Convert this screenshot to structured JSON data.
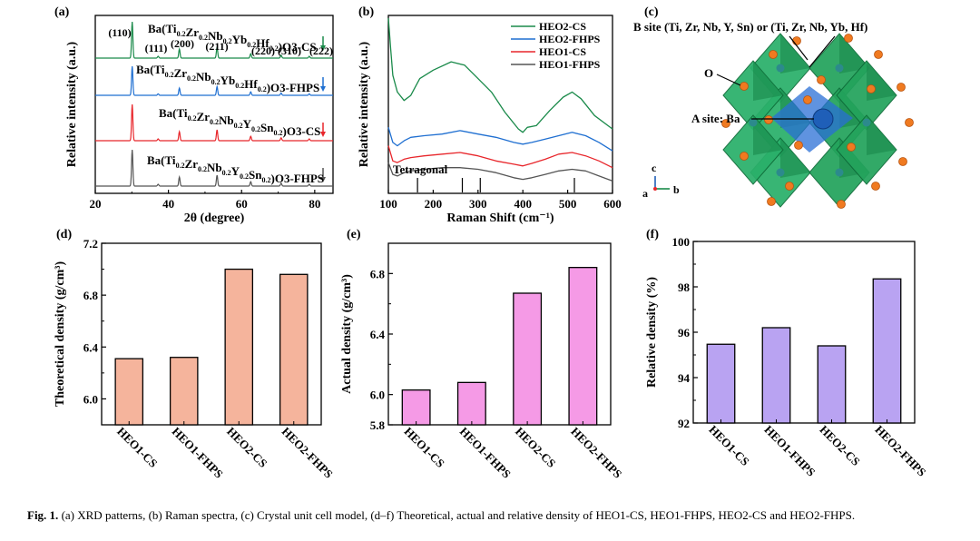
{
  "figure": {
    "caption_label": "Fig. 1.",
    "caption_text": "(a) XRD patterns, (b) Raman spectra, (c) Crystal unit cell model, (d–f) Theoretical, actual and relative density of HEO1-CS, HEO1-FHPS, HEO2-CS and HEO2-FHPS."
  },
  "panel_a": {
    "label": "(a)",
    "xlabel": "2θ (degree)",
    "ylabel": "Relative intensity (a.u.)",
    "xticks": [
      "20",
      "40",
      "60",
      "80"
    ],
    "peaks": [
      "(110)",
      "(111)",
      "(200)",
      "(211)",
      "(220)",
      "(310)",
      "(222)"
    ],
    "series_names": [
      "Ba(Ti0.2Zr0.2Nb0.2Yb0.2Hf0.2)O3-CS",
      "Ba(Ti0.2Zr0.2Nb0.2Yb0.2Hf0.2)O3-FHPS",
      "Ba(Ti0.2Zr0.2Nb0.2Y0.2Sn0.2)O3-CS",
      "Ba(Ti0.2Zr0.2Nb0.2Y0.2Sn0.2)O3-FHPS"
    ]
  },
  "panel_b": {
    "label": "(b)",
    "xlabel": "Raman Shift (cm⁻¹)",
    "ylabel": "Relative intensity (a.u.)",
    "xticks": [
      "100",
      "200",
      "300",
      "400",
      "500",
      "600"
    ],
    "legend": [
      "HEO2-CS",
      "HEO2-FHPS",
      "HEO1-CS",
      "HEO1-FHPS"
    ],
    "annotation": "Tetragonal"
  },
  "panel_c": {
    "label": "(c)",
    "b_site": "B site (Ti, Zr, Nb, Y, Sn) or (Ti, Zr, Nb, Yb, Hf)",
    "o_label": "O",
    "a_site": "A site: Ba",
    "axes": [
      "c",
      "a",
      "b"
    ]
  },
  "colors": {
    "green": "#1a8a4a",
    "blue": "#1f6fd1",
    "red": "#e8262b",
    "gray": "#555555",
    "bar_d": "#f5b49c",
    "bar_e": "#f59ae6",
    "bar_f": "#b9a3f2"
  },
  "chart_data": [
    {
      "type": "line",
      "title": "XRD patterns",
      "xlabel": "2θ (degree)",
      "ylabel": "Relative intensity (a.u.)",
      "xlim": [
        20,
        85
      ],
      "peak_positions": [
        30.1,
        37.2,
        43.0,
        53.3,
        62.5,
        70.8,
        78.5
      ],
      "peak_labels": [
        "(110)",
        "(111)",
        "(200)",
        "(211)",
        "(220)",
        "(310)",
        "(222)"
      ],
      "peak_intensity": [
        1.0,
        0.05,
        0.25,
        0.3,
        0.12,
        0.08,
        0.05
      ],
      "series": [
        {
          "name": "Ba(Ti0.2Zr0.2Nb0.2Yb0.2Hf0.2)O3-CS",
          "color": "#1a8a4a"
        },
        {
          "name": "Ba(Ti0.2Zr0.2Nb0.2Yb0.2Hf0.2)O3-FHPS",
          "color": "#1f6fd1"
        },
        {
          "name": "Ba(Ti0.2Zr0.2Nb0.2Y0.2Sn0.2)O3-CS",
          "color": "#e8262b"
        },
        {
          "name": "Ba(Ti0.2Zr0.2Nb0.2Y0.2Sn0.2)O3-FHPS",
          "color": "#555555"
        }
      ]
    },
    {
      "type": "line",
      "title": "Raman spectra",
      "xlabel": "Raman Shift (cm⁻¹)",
      "ylabel": "Relative intensity (a.u.)",
      "xlim": [
        100,
        600
      ],
      "tetragonal_markers": [
        165,
        265,
        305,
        515
      ],
      "series": [
        {
          "name": "HEO2-CS",
          "color": "#1a8a4a",
          "x": [
            100,
            105,
            110,
            120,
            135,
            150,
            170,
            200,
            240,
            270,
            300,
            330,
            360,
            390,
            400,
            410,
            430,
            460,
            490,
            510,
            530,
            560,
            600
          ],
          "y": [
            10.0,
            8.2,
            6.6,
            5.6,
            5.1,
            5.4,
            6.4,
            6.9,
            7.4,
            7.2,
            6.4,
            5.6,
            4.4,
            3.4,
            3.2,
            3.5,
            3.6,
            4.5,
            5.3,
            5.6,
            5.2,
            4.2,
            3.4
          ]
        },
        {
          "name": "HEO2-FHPS",
          "color": "#1f6fd1",
          "x": [
            100,
            110,
            120,
            135,
            150,
            180,
            220,
            260,
            300,
            340,
            380,
            400,
            420,
            450,
            480,
            510,
            540,
            570,
            600
          ],
          "y": [
            3.5,
            2.6,
            2.4,
            2.7,
            2.9,
            3.0,
            3.1,
            3.3,
            3.1,
            2.9,
            2.6,
            2.5,
            2.6,
            2.8,
            3.0,
            3.2,
            3.0,
            2.6,
            2.1
          ]
        },
        {
          "name": "HEO1-CS",
          "color": "#e8262b",
          "x": [
            100,
            110,
            120,
            135,
            150,
            180,
            220,
            260,
            300,
            340,
            380,
            400,
            420,
            450,
            480,
            510,
            540,
            570,
            600
          ],
          "y": [
            2.4,
            1.5,
            1.4,
            1.6,
            1.7,
            1.8,
            1.9,
            2.0,
            1.8,
            1.5,
            1.3,
            1.2,
            1.35,
            1.6,
            1.9,
            2.0,
            1.8,
            1.5,
            1.1
          ]
        },
        {
          "name": "HEO1-FHPS",
          "color": "#555555",
          "x": [
            100,
            110,
            120,
            135,
            150,
            180,
            220,
            260,
            300,
            340,
            380,
            400,
            420,
            450,
            480,
            510,
            540,
            570,
            600
          ],
          "y": [
            1.4,
            0.7,
            0.6,
            0.8,
            0.9,
            1.0,
            1.1,
            1.1,
            1.0,
            0.8,
            0.5,
            0.4,
            0.5,
            0.7,
            0.9,
            1.0,
            0.9,
            0.6,
            0.3
          ]
        }
      ]
    },
    {
      "type": "bar",
      "panel": "(d)",
      "categories": [
        "HEO1-CS",
        "HEO1-FHPS",
        "HEO2-CS",
        "HEO2-FHPS"
      ],
      "values": [
        6.31,
        6.32,
        7.0,
        6.96
      ],
      "ylabel": "Theoretical density (g/cm³)",
      "ylim": [
        5.8,
        7.2
      ],
      "yticks": [
        "6.0",
        "6.4",
        "6.8",
        "7.2"
      ],
      "ytick_values": [
        6.0,
        6.4,
        6.8,
        7.2
      ]
    },
    {
      "type": "bar",
      "panel": "(e)",
      "categories": [
        "HEO1-CS",
        "HEO1-FHPS",
        "HEO2-CS",
        "HEO2-FHPS"
      ],
      "values": [
        6.03,
        6.08,
        6.67,
        6.84
      ],
      "ylabel": "Actual density (g/cm³)",
      "ylim": [
        5.8,
        7.0
      ],
      "yticks": [
        "5.8",
        "6.0",
        "6.4",
        "6.8"
      ],
      "ytick_values": [
        5.8,
        6.0,
        6.4,
        6.8
      ]
    },
    {
      "type": "bar",
      "panel": "(f)",
      "categories": [
        "HEO1-CS",
        "HEO1-FHPS",
        "HEO2-CS",
        "HEO2-FHPS"
      ],
      "values": [
        95.47,
        96.2,
        95.4,
        98.35
      ],
      "ylabel": "Relative density (%)",
      "ylim": [
        92,
        100
      ],
      "yticks": [
        "92",
        "94",
        "96",
        "98",
        "100"
      ],
      "ytick_values": [
        92,
        94,
        96,
        98,
        100
      ]
    }
  ]
}
